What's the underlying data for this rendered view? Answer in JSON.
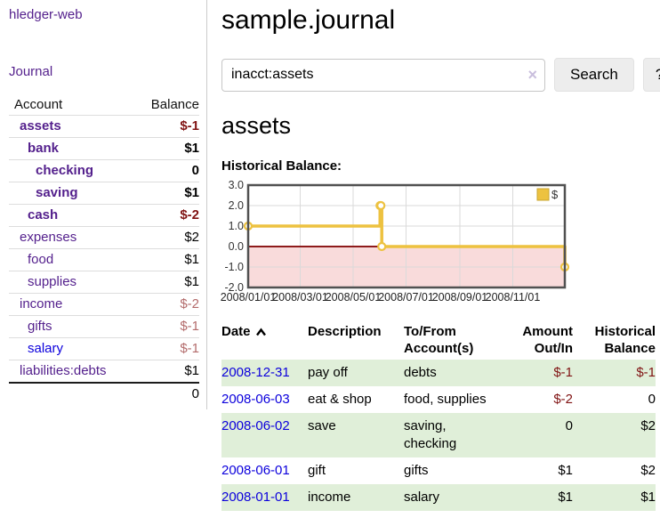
{
  "app": {
    "brand": "hledger-web",
    "nav_journal": "Journal"
  },
  "sidebar": {
    "accounts_table": {
      "header_account": "Account",
      "header_balance": "Balance",
      "rows": [
        {
          "name": "assets",
          "level": 1,
          "bold": true,
          "balance": "$-1",
          "balance_tone": "neg-strong",
          "link_tone": "visited"
        },
        {
          "name": "bank",
          "level": 2,
          "bold": true,
          "balance": "$1",
          "balance_tone": "normal",
          "link_tone": "visited"
        },
        {
          "name": "checking",
          "level": 3,
          "bold": true,
          "balance": "0",
          "balance_tone": "normal",
          "link_tone": "visited"
        },
        {
          "name": "saving",
          "level": 3,
          "bold": true,
          "balance": "$1",
          "balance_tone": "normal",
          "link_tone": "visited"
        },
        {
          "name": "cash",
          "level": 2,
          "bold": true,
          "balance": "$-2",
          "balance_tone": "neg-strong",
          "link_tone": "visited"
        },
        {
          "name": "expenses",
          "level": 1,
          "bold": false,
          "balance": "$2",
          "balance_tone": "normal",
          "link_tone": "visited"
        },
        {
          "name": "food",
          "level": 2,
          "bold": false,
          "balance": "$1",
          "balance_tone": "normal",
          "link_tone": "visited"
        },
        {
          "name": "supplies",
          "level": 2,
          "bold": false,
          "balance": "$1",
          "balance_tone": "normal",
          "link_tone": "visited"
        },
        {
          "name": "income",
          "level": 1,
          "bold": false,
          "balance": "$-2",
          "balance_tone": "neg-soft",
          "link_tone": "visited"
        },
        {
          "name": "gifts",
          "level": 2,
          "bold": false,
          "balance": "$-1",
          "balance_tone": "neg-soft",
          "link_tone": "visited"
        },
        {
          "name": "salary",
          "level": 2,
          "bold": false,
          "balance": "$-1",
          "balance_tone": "neg-soft",
          "link_tone": "unvisited"
        },
        {
          "name": "liabilities:debts",
          "level": 1,
          "bold": false,
          "balance": "$1",
          "balance_tone": "normal",
          "link_tone": "visited"
        }
      ],
      "total": "0"
    }
  },
  "main": {
    "title": "sample.journal",
    "search": {
      "value": "inacct:assets",
      "clear_icon": "×",
      "button": "Search",
      "help_button": "?"
    },
    "account_heading": "assets",
    "chart_heading": "Historical Balance:"
  },
  "chart_data": {
    "type": "line",
    "step": true,
    "title": "Historical Balance",
    "series": [
      {
        "name": "$",
        "color": "#edc240",
        "points": [
          [
            "2008-01-01",
            1
          ],
          [
            "2008-06-01",
            2
          ],
          [
            "2008-06-02",
            2
          ],
          [
            "2008-06-03",
            0
          ],
          [
            "2008-12-31",
            -1
          ]
        ]
      }
    ],
    "x_range": [
      "2008-01-01",
      "2008-12-31"
    ],
    "ylim": [
      -2,
      3
    ],
    "y_ticks": [
      "3.0",
      "2.0",
      "1.0",
      "0.0",
      "-1.0",
      "-2.0"
    ],
    "x_tick_labels": [
      "2008/01/01",
      "2008/03/01",
      "2008/05/01",
      "2008/07/01",
      "2008/09/01",
      "2008/11/01"
    ],
    "x_tick_dates": [
      "2008-01-01",
      "2008-03-01",
      "2008-05-01",
      "2008-07-01",
      "2008-09-01",
      "2008-11-01"
    ],
    "legend": {
      "label": "$",
      "position": "top-right"
    },
    "grid": true,
    "negative_region_color": "#f9dbdb",
    "zero_line_color": "#8e1b1b",
    "border_color": "#515151",
    "gridline_color": "#dadada",
    "marker_fill": "#ffffff"
  },
  "register": {
    "headers": {
      "date": "Date",
      "description": "Description",
      "accounts": "To/From Account(s)",
      "amount": "Amount Out/In",
      "balance": "Historical Balance"
    },
    "rows": [
      {
        "date": "2008-12-31",
        "description": "pay off",
        "accounts": "debts",
        "amount": "$-1",
        "amount_tone": "neg",
        "balance": "$-1",
        "balance_tone": "neg"
      },
      {
        "date": "2008-06-03",
        "description": "eat & shop",
        "accounts": "food, supplies",
        "amount": "$-2",
        "amount_tone": "neg",
        "balance": "0",
        "balance_tone": "normal"
      },
      {
        "date": "2008-06-02",
        "description": "save",
        "accounts": "saving, checking",
        "amount": "0",
        "amount_tone": "normal",
        "balance": "$2",
        "balance_tone": "normal"
      },
      {
        "date": "2008-06-01",
        "description": "gift",
        "accounts": "gifts",
        "amount": "$1",
        "amount_tone": "normal",
        "balance": "$2",
        "balance_tone": "normal"
      },
      {
        "date": "2008-01-01",
        "description": "income",
        "accounts": "salary",
        "amount": "$1",
        "amount_tone": "normal",
        "balance": "$1",
        "balance_tone": "normal"
      }
    ]
  }
}
